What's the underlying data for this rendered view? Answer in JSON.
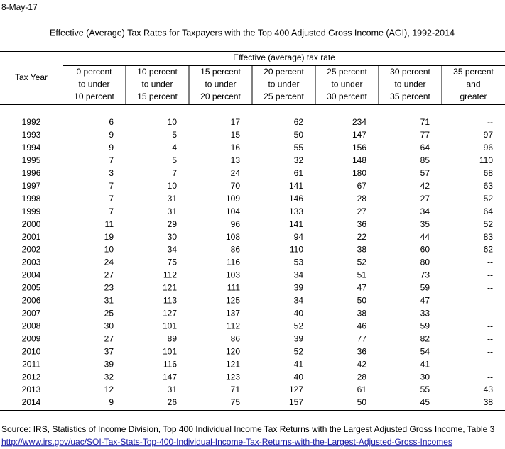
{
  "date": "8-May-17",
  "title": "Effective (Average) Tax Rates for Taxpayers with the Top 400 Adjusted Gross Income (AGI), 1992-2014",
  "table": {
    "year_header": "Tax Year",
    "group_header": "Effective (average) tax rate",
    "columns": [
      [
        "0 percent",
        "to under",
        "10 percent"
      ],
      [
        "10 percent",
        "to under",
        "15 percent"
      ],
      [
        "15 percent",
        "to under",
        "20 percent"
      ],
      [
        "20 percent",
        "to under",
        "25 percent"
      ],
      [
        "25 percent",
        "to under",
        "30 percent"
      ],
      [
        "30 percent",
        "to under",
        "35 percent"
      ],
      [
        "35 percent",
        "and",
        "greater"
      ]
    ],
    "rows": [
      [
        1992,
        6,
        10,
        17,
        62,
        234,
        71,
        "--"
      ],
      [
        1993,
        9,
        5,
        15,
        50,
        147,
        77,
        97
      ],
      [
        1994,
        9,
        4,
        16,
        55,
        156,
        64,
        96
      ],
      [
        1995,
        7,
        5,
        13,
        32,
        148,
        85,
        110
      ],
      [
        1996,
        3,
        7,
        24,
        61,
        180,
        57,
        68
      ],
      [
        1997,
        7,
        10,
        70,
        141,
        67,
        42,
        63
      ],
      [
        1998,
        7,
        31,
        109,
        146,
        28,
        27,
        52
      ],
      [
        1999,
        7,
        31,
        104,
        133,
        27,
        34,
        64
      ],
      [
        2000,
        11,
        29,
        96,
        141,
        36,
        35,
        52
      ],
      [
        2001,
        19,
        30,
        108,
        94,
        22,
        44,
        83
      ],
      [
        2002,
        10,
        34,
        86,
        110,
        38,
        60,
        62
      ],
      [
        2003,
        24,
        75,
        116,
        53,
        52,
        80,
        "--"
      ],
      [
        2004,
        27,
        112,
        103,
        34,
        51,
        73,
        "--"
      ],
      [
        2005,
        23,
        121,
        111,
        39,
        47,
        59,
        "--"
      ],
      [
        2006,
        31,
        113,
        125,
        34,
        50,
        47,
        "--"
      ],
      [
        2007,
        25,
        127,
        137,
        40,
        38,
        33,
        "--"
      ],
      [
        2008,
        30,
        101,
        112,
        52,
        46,
        59,
        "--"
      ],
      [
        2009,
        27,
        89,
        86,
        39,
        77,
        82,
        "--"
      ],
      [
        2010,
        37,
        101,
        120,
        52,
        36,
        54,
        "--"
      ],
      [
        2011,
        39,
        116,
        121,
        41,
        42,
        41,
        "--"
      ],
      [
        2012,
        32,
        147,
        123,
        40,
        28,
        30,
        "--"
      ],
      [
        2013,
        12,
        31,
        71,
        127,
        61,
        55,
        43
      ],
      [
        2014,
        9,
        26,
        75,
        157,
        50,
        45,
        38
      ]
    ]
  },
  "source": "Source: IRS, Statistics of Income Division, Top 400 Individual Income Tax Returns with the Largest Adjusted Gross Income, Table 3",
  "url": "http://www.irs.gov/uac/SOI-Tax-Stats-Top-400-Individual-Income-Tax-Returns-with-the-Largest-Adjusted-Gross-Incomes"
}
